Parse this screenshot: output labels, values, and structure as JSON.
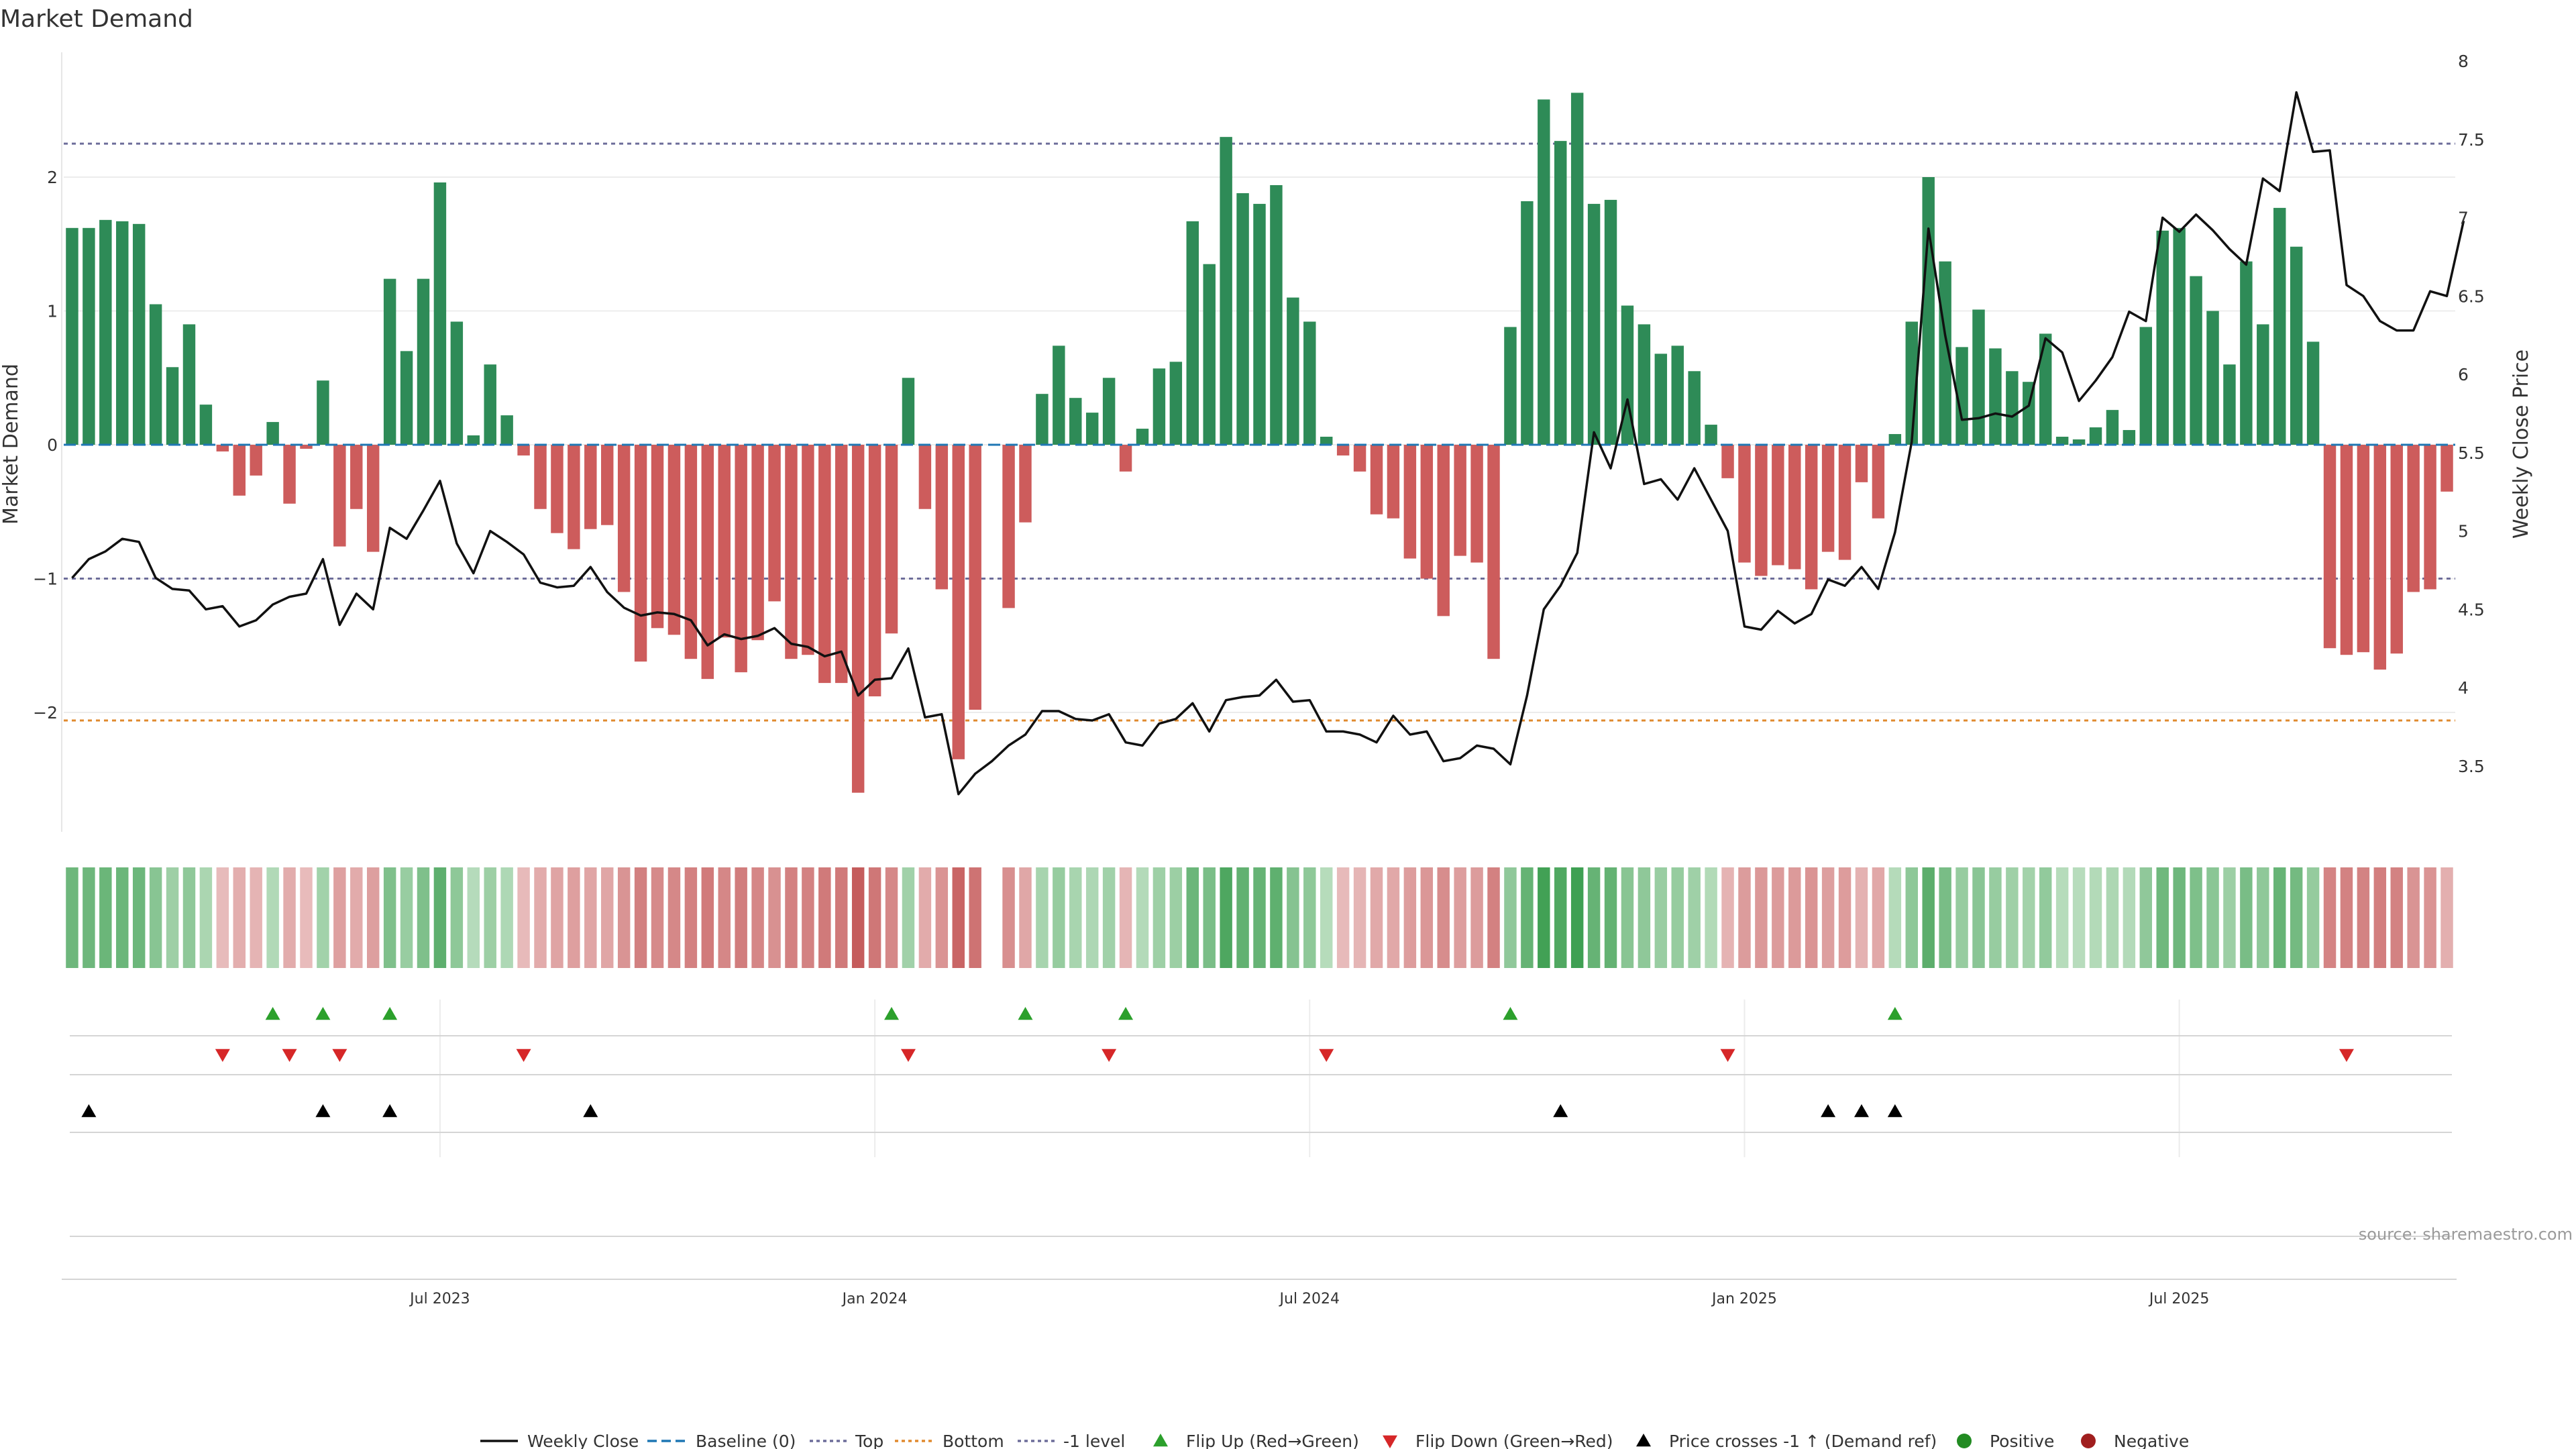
{
  "chart_data": {
    "type": "bar",
    "title": "Market Demand",
    "ylabel": "Market Demand",
    "y2label": "Weekly Close Price",
    "ylim": [
      -2.9,
      2.95
    ],
    "y2lim": [
      3.05,
      8.0
    ],
    "yticks": [
      2,
      1,
      0,
      -1,
      -2
    ],
    "ytick_labels": [
      "2",
      "1",
      "0",
      "−1",
      "−2"
    ],
    "y2ticks": [
      "8",
      "7.5",
      "7",
      "6.5",
      "6",
      "5.5",
      "5",
      "4.5",
      "4",
      "3.5"
    ],
    "x_ticks": [
      {
        "label": "Jul 2023",
        "week": 22
      },
      {
        "label": "Jan 2024",
        "week": 48
      },
      {
        "label": "Jul 2024",
        "week": 74
      },
      {
        "label": "Jan 2025",
        "week": 100
      },
      {
        "label": "Jul 2025",
        "week": 126
      }
    ],
    "reference_lines": {
      "baseline": 0,
      "top": 2.25,
      "bottom": -2.06,
      "minus_one": -1
    },
    "series": [
      {
        "name": "Market Demand",
        "values": [
          1.62,
          1.62,
          1.68,
          1.67,
          1.65,
          1.05,
          0.58,
          0.9,
          0.3,
          -0.05,
          -0.38,
          -0.23,
          0.17,
          -0.44,
          -0.03,
          0.48,
          -0.76,
          -0.48,
          -0.8,
          1.24,
          0.7,
          1.24,
          1.96,
          0.92,
          0.07,
          0.6,
          0.22,
          -0.08,
          -0.48,
          -0.66,
          -0.78,
          -0.63,
          -0.6,
          -1.1,
          -1.62,
          -1.37,
          -1.42,
          -1.6,
          -1.75,
          -1.44,
          -1.7,
          -1.46,
          -1.17,
          -1.6,
          -1.57,
          -1.78,
          -1.78,
          -2.6,
          -1.88,
          -1.41,
          0.5,
          -0.48,
          -1.08,
          -2.35,
          -1.98,
          0,
          -1.22,
          -0.58,
          0.38,
          0.74,
          0.35,
          0.24,
          0.5,
          -0.2,
          0.12,
          0.57,
          0.62,
          1.67,
          1.35,
          2.3,
          1.88,
          1.8,
          1.94,
          1.1,
          0.92,
          0.06,
          -0.08,
          -0.2,
          -0.52,
          -0.55,
          -0.85,
          -1.0,
          -1.28,
          -0.83,
          -0.88,
          -1.6,
          0.88,
          1.82,
          2.58,
          2.27,
          2.63,
          1.8,
          1.83,
          1.04,
          0.9,
          0.68,
          0.74,
          0.55,
          0.15,
          -0.25,
          -0.88,
          -0.98,
          -0.9,
          -0.93,
          -1.08,
          -0.8,
          -0.86,
          -0.28,
          -0.55,
          0.08,
          0.92,
          2.0,
          1.37,
          0.73,
          1.01,
          0.72,
          0.55,
          0.47,
          0.83,
          0.06,
          0.04,
          0.13,
          0.26,
          0.11,
          0.88,
          1.6,
          1.62,
          1.26,
          1.0,
          0.6,
          1.37,
          0.9,
          1.77,
          1.48,
          0.77,
          -1.52,
          -1.57,
          -1.55,
          -1.68,
          -1.56,
          -1.1,
          -1.08,
          -0.35
        ]
      },
      {
        "name": "Weekly Close",
        "values": [
          4.7,
          4.82,
          4.87,
          4.95,
          4.93,
          4.7,
          4.63,
          4.62,
          4.5,
          4.52,
          4.39,
          4.43,
          4.53,
          4.58,
          4.6,
          4.82,
          4.4,
          4.6,
          4.5,
          5.02,
          4.95,
          5.13,
          5.32,
          4.92,
          4.73,
          5.0,
          4.93,
          4.85,
          4.67,
          4.64,
          4.65,
          4.77,
          4.61,
          4.51,
          4.46,
          4.48,
          4.47,
          4.43,
          4.27,
          4.34,
          4.31,
          4.33,
          4.38,
          4.28,
          4.26,
          4.2,
          4.23,
          3.95,
          4.05,
          4.06,
          4.25,
          3.81,
          3.83,
          3.32,
          3.45,
          3.53,
          3.63,
          3.7,
          3.85,
          3.85,
          3.8,
          3.79,
          3.83,
          3.65,
          3.63,
          3.77,
          3.8,
          3.9,
          3.72,
          3.92,
          3.94,
          3.95,
          4.05,
          3.91,
          3.92,
          3.72,
          3.72,
          3.7,
          3.65,
          3.82,
          3.7,
          3.72,
          3.53,
          3.55,
          3.63,
          3.61,
          3.51,
          3.95,
          4.5,
          4.65,
          4.86,
          5.63,
          5.4,
          5.84,
          5.3,
          5.33,
          5.2,
          5.4,
          5.2,
          5.0,
          4.39,
          4.37,
          4.49,
          4.41,
          4.47,
          4.69,
          4.65,
          4.77,
          4.63,
          4.99,
          5.57,
          6.93,
          6.25,
          5.71,
          5.72,
          5.75,
          5.73,
          5.8,
          6.23,
          6.14,
          5.83,
          5.96,
          6.11,
          6.4,
          6.34,
          7.0,
          6.91,
          7.02,
          6.92,
          6.8,
          6.7,
          7.25,
          7.17,
          7.8,
          7.42,
          7.43,
          6.57,
          6.5,
          6.34,
          6.28,
          6.28,
          6.53,
          6.5,
          6.98
        ]
      }
    ],
    "flip_up_weeks": [
      12,
      15,
      19,
      49,
      57,
      63,
      86,
      109
    ],
    "flip_down_weeks": [
      9,
      13,
      16,
      27,
      50,
      62,
      75,
      99,
      136
    ],
    "price_cross_weeks": [
      1,
      15,
      19,
      31,
      89,
      105,
      107,
      109
    ],
    "legend": [
      "Weekly Close",
      "Baseline (0)",
      "Top",
      "Bottom",
      "-1 level",
      "Flip Up (Red→Green)",
      "Flip Down (Green→Red)",
      "Price crosses -1 ↑ (Demand ref)",
      "Positive",
      "Negative"
    ],
    "legend_placement": "bottom-center",
    "colors": {
      "positive": "#2e8b57",
      "negative": "#cd5c5c",
      "price": "#111111",
      "top_line": "#6d6d9a",
      "bottom_line": "#e08a2e",
      "baseline": "#1f77b4",
      "minus_one_line": "#6d6d9a",
      "flip_up": "#2ca02c",
      "flip_down": "#d62728",
      "price_cross": "#000000",
      "positive_marker": "#228b22",
      "negative_marker": "#a01e1e"
    },
    "grid": true
  },
  "source": "source: sharemaestro.com"
}
